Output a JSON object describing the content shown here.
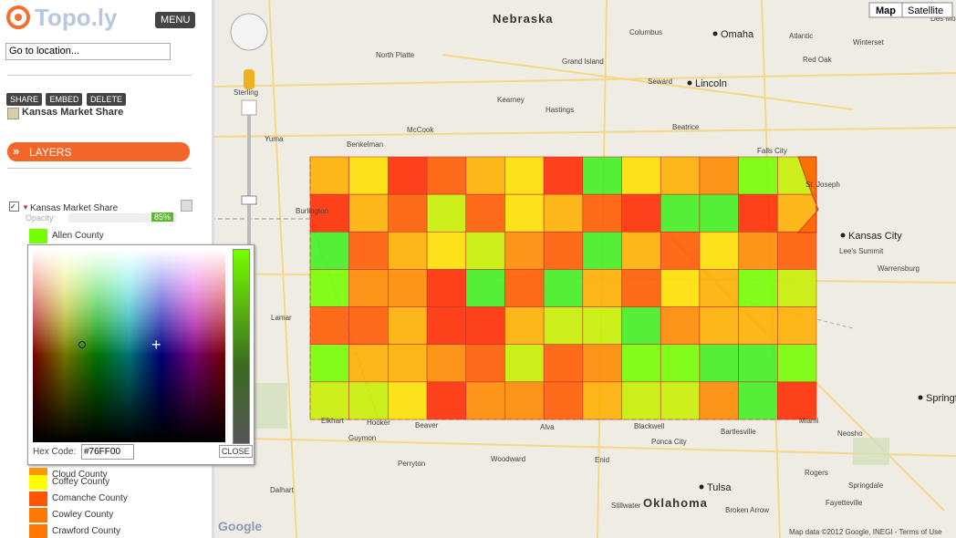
{
  "header": {
    "logo": "Topo.ly",
    "menu": "MENU"
  },
  "search": {
    "placeholder": "Go to location..."
  },
  "actions": [
    "SHARE",
    "EMBED",
    "DELETE"
  ],
  "map_title": "Kansas Market Share",
  "layers_heading": "LAYERS",
  "layer": {
    "name": "Kansas Market Share",
    "opacity_label": "Opacity:",
    "opacity": "85%"
  },
  "counties": [
    {
      "name": "Allen County",
      "color": "#76FF00"
    },
    {
      "name": "Cloud County",
      "color": "#FF9900"
    },
    {
      "name": "Coffey County",
      "color": "#FFFF00"
    },
    {
      "name": "Comanche County",
      "color": "#FF5500"
    },
    {
      "name": "Cowley County",
      "color": "#FF7700"
    },
    {
      "name": "Crawford County",
      "color": "#FF7700"
    }
  ],
  "color_picker": {
    "hex_label": "Hex Code:",
    "hex_value": "#76FF00",
    "close": "CLOSE"
  },
  "map_controls": {
    "map": "Map",
    "satellite": "Satellite"
  },
  "map_labels": [
    "Nebraska",
    "Oklahoma",
    "Omaha",
    "Lincoln",
    "Kansas City",
    "Tulsa",
    "Springfield",
    "St. Joseph",
    "Lee's Summit",
    "Des Moines",
    "Grand Island",
    "Kearney",
    "Hastings",
    "North Platte",
    "McCook",
    "Yuma",
    "Benkelman",
    "Burlington",
    "Lamar",
    "Elkhart",
    "Hooker",
    "Beaver",
    "Guymon",
    "Woodward",
    "Alva",
    "Enid",
    "Ponca City",
    "Blackwell",
    "Bartlesville",
    "Stillwater",
    "Broken Arrow",
    "Miami",
    "Rogers",
    "Springdale",
    "Fayetteville",
    "Warrensburg",
    "Beatrice",
    "Falls City",
    "Seward",
    "Columbus",
    "Red Oak",
    "Winterset",
    "Sterling",
    "Neosho",
    "Atlantic",
    "Perryton",
    "Dalhart"
  ],
  "map_footer": {
    "logo": "Google",
    "attribution": "Map data ©2012 Google, INEGI - Terms of Use"
  }
}
